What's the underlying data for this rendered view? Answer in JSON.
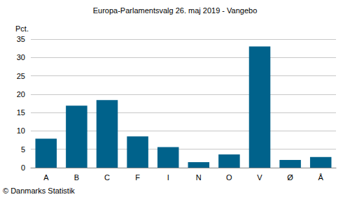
{
  "chart_data": {
    "type": "bar",
    "title": "Europa-Parlamentsvalg 26. maj 2019 - Vangebo",
    "y_label": "Pct.",
    "source": "© Danmarks Statistik",
    "categories": [
      "A",
      "B",
      "C",
      "F",
      "I",
      "N",
      "O",
      "V",
      "Ø",
      "Å"
    ],
    "values": [
      7.9,
      16.9,
      18.4,
      8.5,
      5.6,
      1.5,
      3.6,
      33.0,
      2.1,
      2.9
    ],
    "color": "#00628b",
    "ylim": [
      0,
      35
    ],
    "yticks": [
      0,
      5,
      10,
      15,
      20,
      25,
      30,
      35
    ],
    "grid": true
  }
}
